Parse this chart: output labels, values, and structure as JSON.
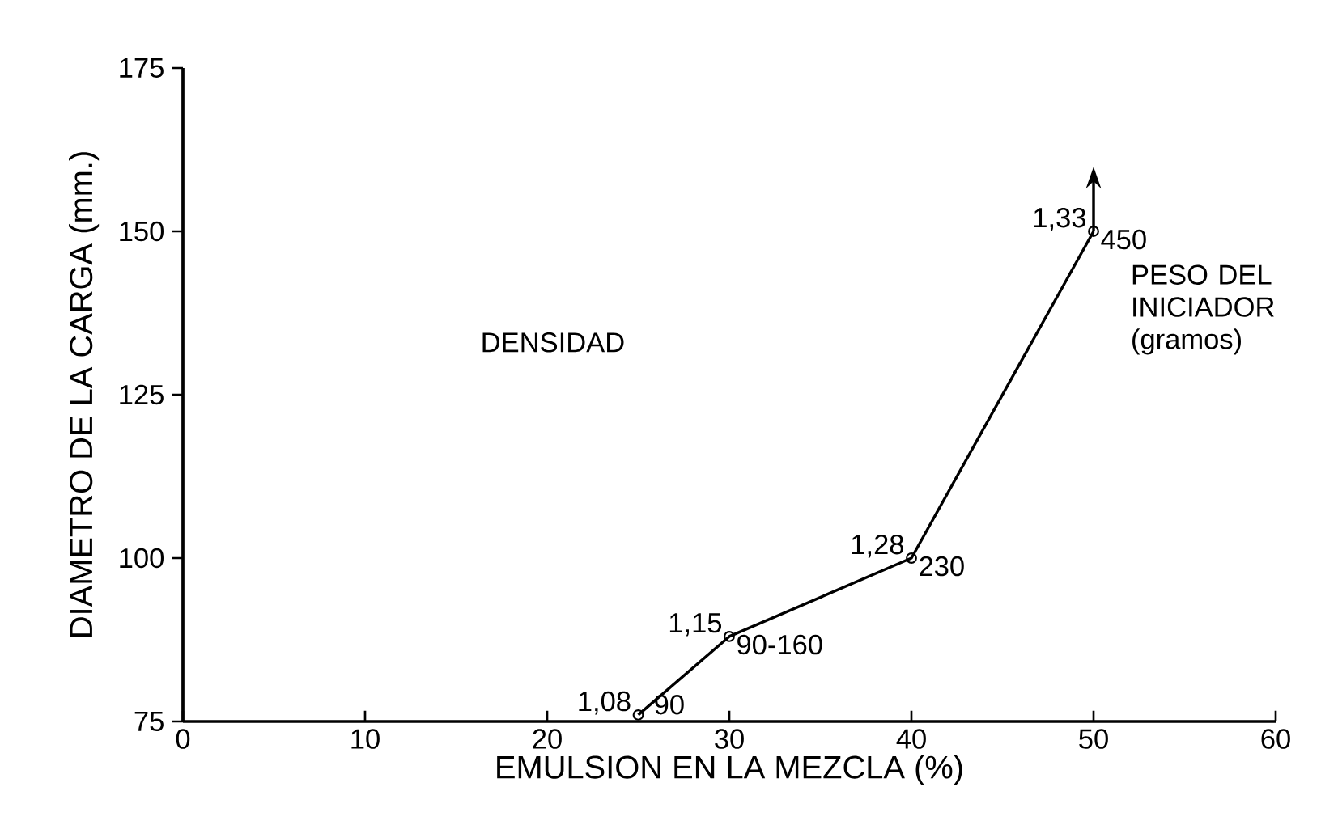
{
  "chart_data": {
    "type": "line",
    "xlabel": "EMULSION EN LA MEZCLA (%)",
    "ylabel": "DIAMETRO DE LA CARGA (mm.)",
    "x": [
      25,
      30,
      40,
      50
    ],
    "series": [
      {
        "color": "#000000",
        "values": [
          76,
          88,
          100,
          150
        ]
      }
    ],
    "marker": "circle",
    "line_style": "solid",
    "grid": false,
    "xlim": [
      0,
      60
    ],
    "xticks": [
      0,
      10,
      20,
      30,
      40,
      50,
      60
    ],
    "ylim": [
      75,
      175
    ],
    "yticks": [
      75,
      100,
      125,
      150,
      175
    ],
    "annotations": [
      "DENSIDAD",
      "PESO DEL INICIADOR (gramos)",
      {
        "text": "1,08",
        "x": 25,
        "y": 76
      },
      {
        "text": "90",
        "x": 25,
        "y": 76
      },
      {
        "text": "1,15",
        "x": 30,
        "y": 88
      },
      {
        "text": "90-160",
        "x": 30,
        "y": 88
      },
      {
        "text": "1,28",
        "x": 40,
        "y": 100
      },
      {
        "text": "230",
        "x": 40,
        "y": 100
      },
      {
        "text": "1,33",
        "x": 50,
        "y": 150
      },
      {
        "text": "450",
        "x": 50,
        "y": 150
      }
    ]
  }
}
